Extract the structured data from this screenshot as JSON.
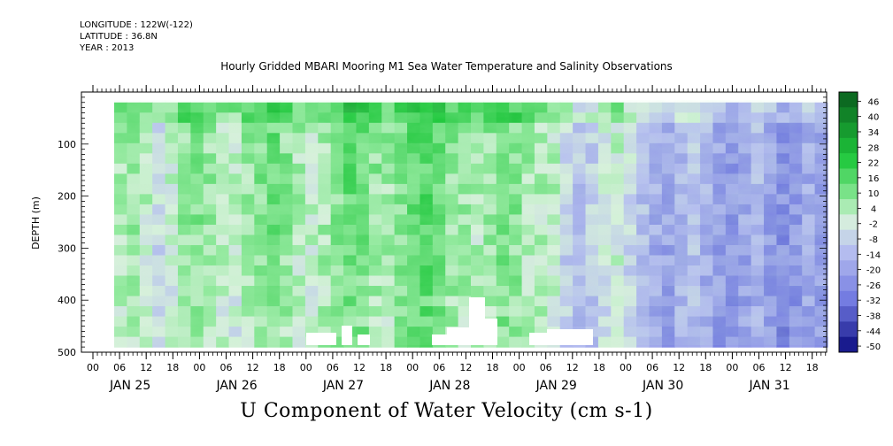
{
  "header": {
    "longitude": "LONGITUDE : 122W(-122)",
    "latitude": "LATITUDE : 36.8N",
    "year": "YEAR : 2013"
  },
  "chart_data": {
    "type": "heatmap",
    "title": "Hourly Gridded MBARI Mooring M1 Sea Water Temperature and Salinity Observations",
    "variable_label": "U Component of Water Velocity (cm s-1)",
    "ylabel": "DEPTH (m)",
    "ylim": [
      500,
      0
    ],
    "y_ticks": [
      100,
      200,
      300,
      400,
      500
    ],
    "x_hour_ticks": [
      "00",
      "06",
      "12",
      "18",
      "00",
      "06",
      "12",
      "18",
      "00",
      "06",
      "12",
      "18",
      "00",
      "06",
      "12",
      "18",
      "00",
      "06",
      "12",
      "18",
      "00",
      "06",
      "12",
      "18",
      "00",
      "06",
      "12",
      "18"
    ],
    "x_day_labels": [
      "JAN 25",
      "JAN 26",
      "JAN 27",
      "JAN 28",
      "JAN 29",
      "JAN 30",
      "JAN 31"
    ],
    "colorbar": {
      "levels": [
        "46",
        "40",
        "34",
        "28",
        "22",
        "16",
        "10",
        "4",
        "-2",
        "-8",
        "-14",
        "-20",
        "-26",
        "-32",
        "-38",
        "-44",
        "-50"
      ],
      "range": [
        -50,
        52
      ]
    },
    "data_depth_range": [
      20,
      490
    ],
    "column_mean_velocity": [
      8,
      10,
      6,
      -2,
      4,
      12,
      14,
      10,
      6,
      4,
      10,
      14,
      16,
      12,
      8,
      6,
      10,
      14,
      18,
      16,
      12,
      10,
      14,
      18,
      20,
      16,
      12,
      10,
      8,
      12,
      16,
      14,
      10,
      8,
      6,
      -4,
      -8,
      -6,
      0,
      4,
      -2,
      -10,
      -14,
      -16,
      -12,
      -8,
      -14,
      -18,
      -20,
      -16,
      -12,
      -18,
      -22,
      -20,
      -16,
      -18
    ]
  },
  "colors": {
    "positive_strong": "#0a5e1e",
    "positive": "#1fc83c",
    "positive_light": "#8ee89a",
    "neutral": "#d8f0dc",
    "negative_light": "#b8c0f0",
    "negative": "#7078e0",
    "negative_strong": "#0a0a80"
  }
}
